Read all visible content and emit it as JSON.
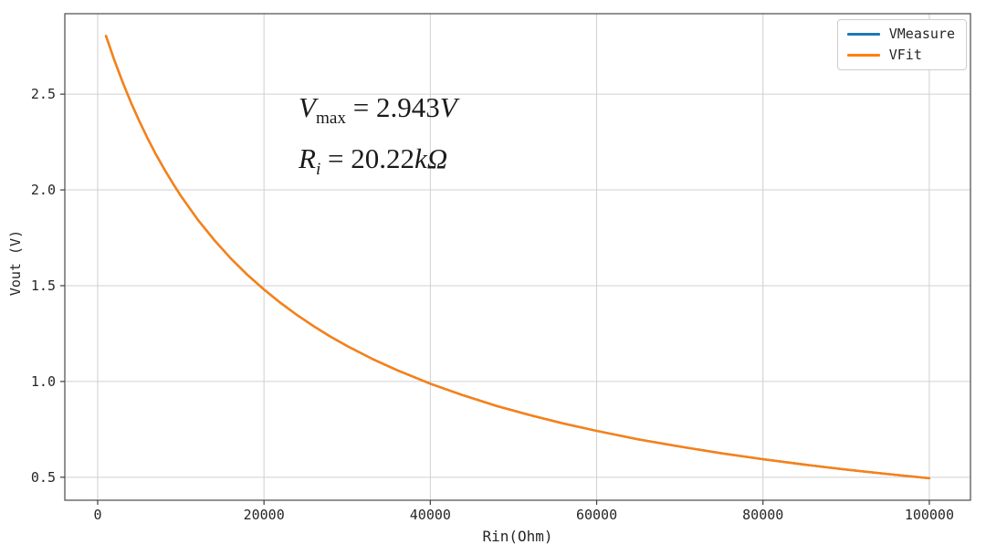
{
  "chart_data": {
    "type": "line",
    "title": "",
    "xlabel": "Rin(Ohm)",
    "ylabel": "Vout (V)",
    "xlim": [
      -3950,
      104950
    ],
    "ylim": [
      0.38,
      2.92
    ],
    "grid": true,
    "legend_position": "upper right",
    "xticks": [
      0,
      20000,
      40000,
      60000,
      80000,
      100000
    ],
    "xtick_labels": [
      "0",
      "20000",
      "40000",
      "60000",
      "80000",
      "100000"
    ],
    "yticks": [
      0.5,
      1.0,
      1.5,
      2.0,
      2.5
    ],
    "ytick_labels": [
      "0.5",
      "1.0",
      "1.5",
      "2.0",
      "2.5"
    ],
    "x": [
      1000,
      2000,
      3000,
      4000,
      5000,
      6000,
      7000,
      8000,
      9000,
      10000,
      12000,
      14000,
      16000,
      18000,
      20000,
      22000,
      24000,
      26000,
      28000,
      30000,
      33000,
      36000,
      40000,
      44000,
      48000,
      52000,
      56000,
      60000,
      65000,
      70000,
      75000,
      80000,
      85000,
      90000,
      95000,
      100000
    ],
    "series": [
      {
        "name": "VMeasure",
        "color": "#1f77b4",
        "values": [
          2.804,
          2.678,
          2.563,
          2.457,
          2.36,
          2.27,
          2.186,
          2.109,
          2.037,
          1.969,
          1.847,
          1.739,
          1.643,
          1.557,
          1.48,
          1.41,
          1.346,
          1.288,
          1.234,
          1.185,
          1.118,
          1.059,
          0.988,
          0.927,
          0.872,
          0.824,
          0.781,
          0.742,
          0.698,
          0.66,
          0.625,
          0.594,
          0.566,
          0.54,
          0.517,
          0.495
        ]
      },
      {
        "name": "VFit",
        "color": "#ff7f0e",
        "values": [
          2.804,
          2.678,
          2.563,
          2.457,
          2.36,
          2.27,
          2.186,
          2.109,
          2.037,
          1.969,
          1.847,
          1.739,
          1.643,
          1.557,
          1.48,
          1.41,
          1.346,
          1.288,
          1.234,
          1.185,
          1.118,
          1.059,
          0.988,
          0.927,
          0.872,
          0.824,
          0.781,
          0.742,
          0.698,
          0.66,
          0.625,
          0.594,
          0.566,
          0.54,
          0.517,
          0.495
        ]
      }
    ],
    "annotations": [
      "Vmax = 2.943V",
      "Ri = 20.22kΩ"
    ]
  },
  "annotation": {
    "line1": {
      "symbol": "V",
      "sub": "max",
      "eq": " = ",
      "value": "2.943",
      "unit": "V"
    },
    "line2": {
      "symbol": "R",
      "sub": "i",
      "eq": " = ",
      "value": "20.22",
      "unit": "kΩ"
    }
  },
  "legend": {
    "items": [
      {
        "label": "VMeasure",
        "color": "#1f77b4"
      },
      {
        "label": "VFit",
        "color": "#ff7f0e"
      }
    ]
  },
  "style": {
    "grid_color": "#d0d0d0",
    "spine_color": "#4a4a4a",
    "tick_color": "#3c3c3c",
    "line_width": 2.4
  }
}
